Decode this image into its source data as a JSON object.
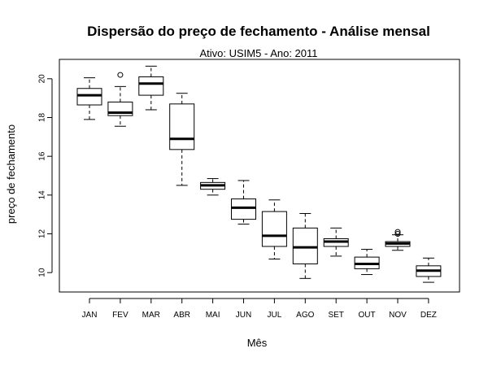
{
  "chart_data": {
    "type": "boxplot",
    "title": "Dispersão do  preço de fechamento  - Análise mensal",
    "subtitle": "Ativo: USIM5 - Ano: 2011",
    "xlabel": "Mês",
    "ylabel": "preço de fechamento",
    "ylim": [
      9.0,
      21.0
    ],
    "yticks": [
      10,
      12,
      14,
      16,
      18,
      20
    ],
    "categories": [
      "JAN",
      "FEV",
      "MAR",
      "ABR",
      "MAI",
      "JUN",
      "JUL",
      "AGO",
      "SET",
      "OUT",
      "NOV",
      "DEZ"
    ],
    "boxes": [
      {
        "min": 17.9,
        "q1": 18.65,
        "median": 19.15,
        "q3": 19.5,
        "max": 20.05,
        "outliers": []
      },
      {
        "min": 17.55,
        "q1": 18.1,
        "median": 18.25,
        "q3": 18.8,
        "max": 19.6,
        "outliers": [
          20.2
        ]
      },
      {
        "min": 18.4,
        "q1": 19.15,
        "median": 19.75,
        "q3": 20.1,
        "max": 20.65,
        "outliers": []
      },
      {
        "min": 14.5,
        "q1": 16.35,
        "median": 16.9,
        "q3": 18.7,
        "max": 19.25,
        "outliers": []
      },
      {
        "min": 14.0,
        "q1": 14.3,
        "median": 14.5,
        "q3": 14.65,
        "max": 14.85,
        "outliers": []
      },
      {
        "min": 12.5,
        "q1": 12.75,
        "median": 13.35,
        "q3": 13.8,
        "max": 14.75,
        "outliers": []
      },
      {
        "min": 10.7,
        "q1": 11.35,
        "median": 11.9,
        "q3": 13.15,
        "max": 13.75,
        "outliers": []
      },
      {
        "min": 9.7,
        "q1": 10.45,
        "median": 11.3,
        "q3": 12.3,
        "max": 13.05,
        "outliers": []
      },
      {
        "min": 10.85,
        "q1": 11.35,
        "median": 11.6,
        "q3": 11.75,
        "max": 12.3,
        "outliers": []
      },
      {
        "min": 9.9,
        "q1": 10.2,
        "median": 10.45,
        "q3": 10.8,
        "max": 11.2,
        "outliers": []
      },
      {
        "min": 11.15,
        "q1": 11.35,
        "median": 11.5,
        "q3": 11.6,
        "max": 11.95,
        "outliers": [
          12.1,
          12.0
        ]
      },
      {
        "min": 9.5,
        "q1": 9.8,
        "median": 10.1,
        "q3": 10.35,
        "max": 10.75,
        "outliers": []
      }
    ],
    "grid": false,
    "legend": "none"
  }
}
